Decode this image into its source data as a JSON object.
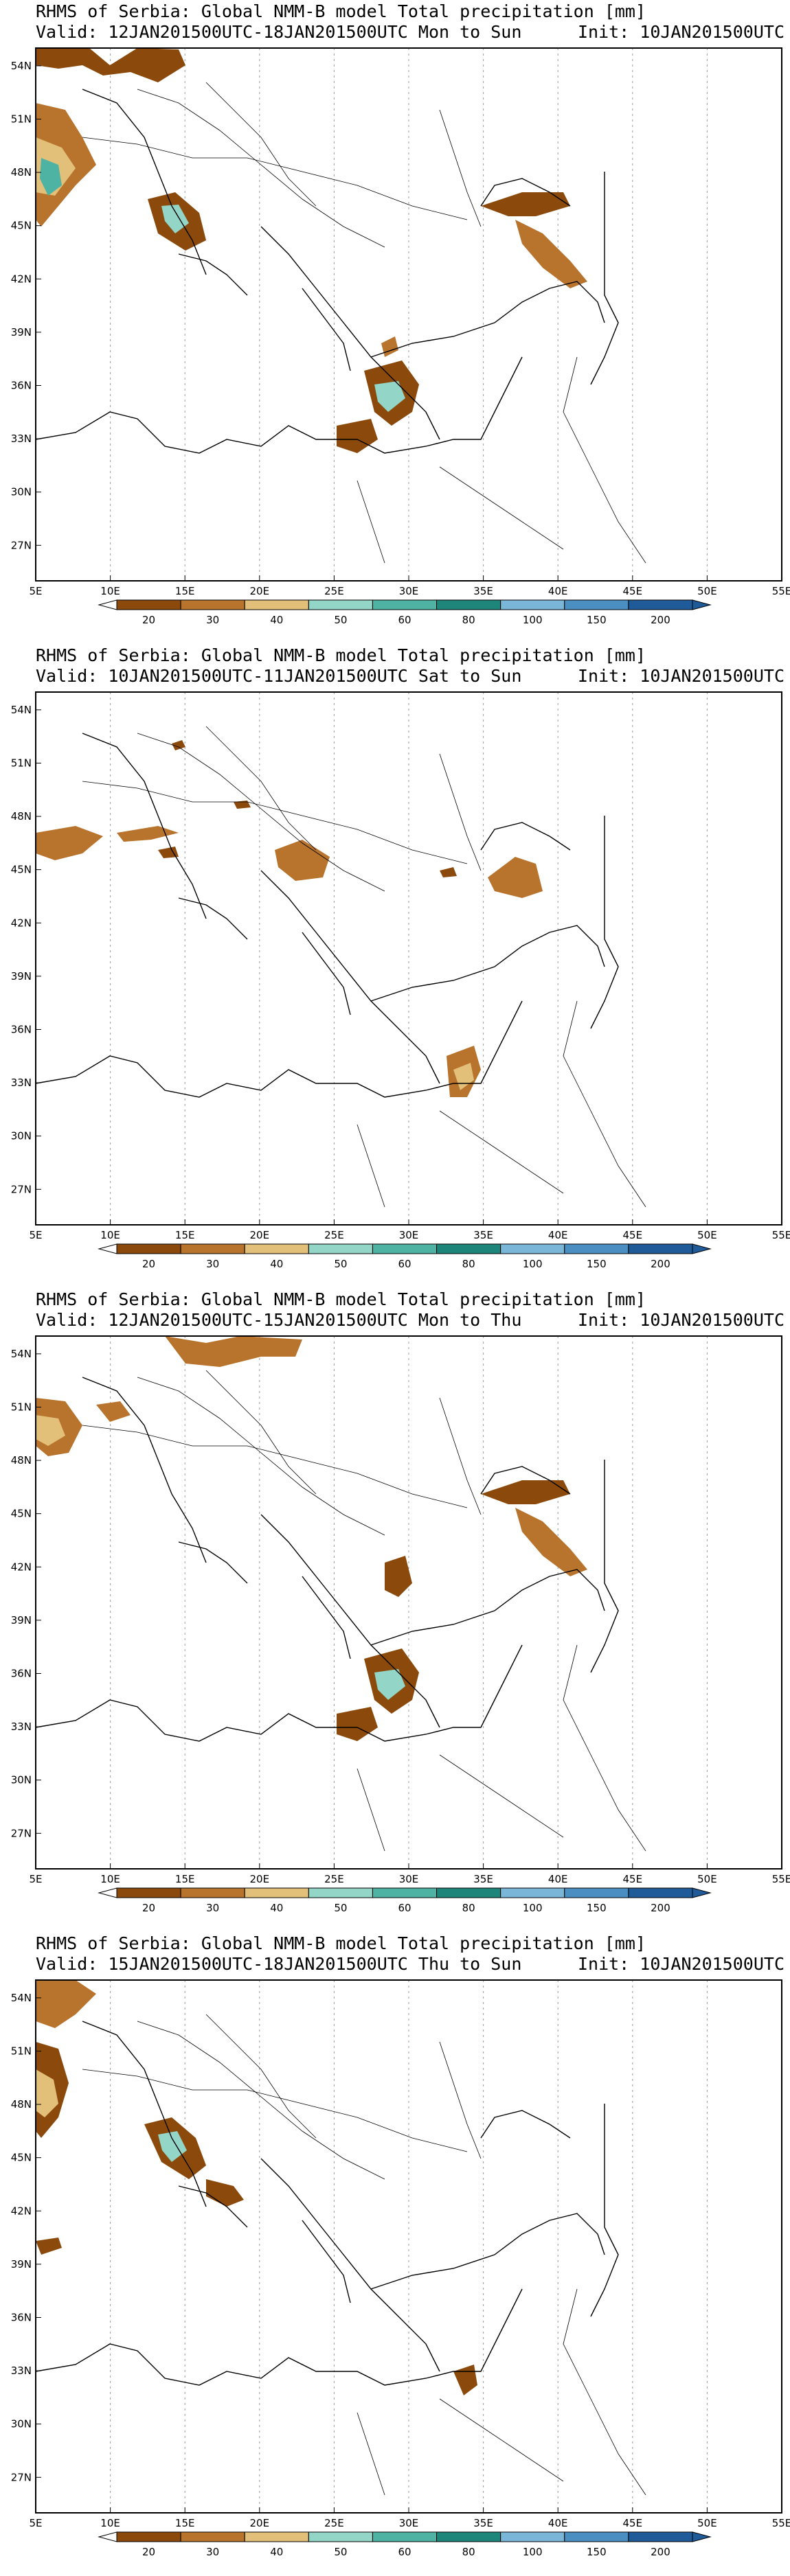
{
  "panels": [
    {
      "title": "RHMS of Serbia: Global NMM-B model Total precipitation [mm]",
      "valid": "Valid: 12JAN201500UTC-18JAN201500UTC Mon to Sun",
      "init": "Init: 10JAN201500UTC"
    },
    {
      "title": "RHMS of Serbia: Global NMM-B model Total precipitation [mm]",
      "valid": "Valid: 10JAN201500UTC-11JAN201500UTC Sat to Sun",
      "init": "Init: 10JAN201500UTC"
    },
    {
      "title": "RHMS of Serbia: Global NMM-B model Total precipitation [mm]",
      "valid": "Valid: 12JAN201500UTC-15JAN201500UTC Mon to Thu",
      "init": "Init: 10JAN201500UTC"
    },
    {
      "title": "RHMS of Serbia: Global NMM-B model Total precipitation [mm]",
      "valid": "Valid: 15JAN201500UTC-18JAN201500UTC Thu to Sun",
      "init": "Init: 10JAN201500UTC"
    }
  ],
  "map": {
    "lon_labels": [
      "5E",
      "10E",
      "15E",
      "20E",
      "25E",
      "30E",
      "35E",
      "40E",
      "45E",
      "50E",
      "55E"
    ],
    "lat_labels": [
      "54N",
      "51N",
      "48N",
      "45N",
      "42N",
      "39N",
      "36N",
      "33N",
      "30N",
      "27N"
    ],
    "extent": {
      "lon": [
        5,
        55
      ],
      "lat": [
        25,
        55
      ]
    }
  },
  "colorbar": {
    "labels": [
      "20",
      "30",
      "40",
      "50",
      "60",
      "80",
      "100",
      "150",
      "200"
    ],
    "colors": [
      "#8b4a0b",
      "#b8732c",
      "#e3c07a",
      "#93d5c6",
      "#4fb3a4",
      "#1e857a",
      "#7ab6d8",
      "#4a8ec2",
      "#1f5a99"
    ]
  },
  "colors": {
    "coast": "#000000",
    "grid": "#9a9a9a",
    "precip_dark": "#8b4a0b",
    "precip_mid": "#b8732c"
  }
}
